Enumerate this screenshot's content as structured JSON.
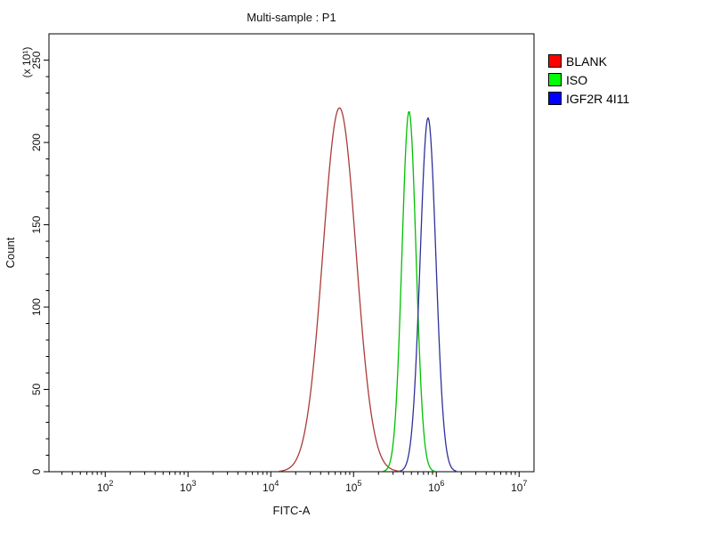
{
  "title": "Multi-sample : P1",
  "chart_data": {
    "type": "line",
    "title": "Multi-sample : P1",
    "xlabel": "FITC-A",
    "ylabel": "Count",
    "y_unit_label": "(x 10¹)",
    "x_scale": "log",
    "x_tick_exponents": [
      2,
      3,
      4,
      5,
      6,
      7
    ],
    "x_range_log10": [
      1.32,
      7.18
    ],
    "y_ticks": [
      0,
      50,
      100,
      150,
      200,
      250
    ],
    "y_minor_step": 10,
    "ylim": [
      0,
      266
    ],
    "grid": false,
    "legend_position": "top-right",
    "series": [
      {
        "name": "BLANK",
        "legend_color": "#ff0000",
        "line_color": "#aa3a3a",
        "peak_x": 67000,
        "peak_log10": 4.83,
        "sigma_log10": 0.2,
        "peak_height": 221
      },
      {
        "name": "ISO",
        "legend_color": "#00ff00",
        "line_color": "#00c000",
        "peak_x": 470000,
        "peak_log10": 5.67,
        "sigma_log10": 0.085,
        "peak_height": 219
      },
      {
        "name": "IGF2R 4I11",
        "legend_color": "#0000ff",
        "line_color": "#30309c",
        "peak_x": 800000,
        "peak_log10": 5.9,
        "sigma_log10": 0.095,
        "peak_height": 215
      }
    ]
  }
}
